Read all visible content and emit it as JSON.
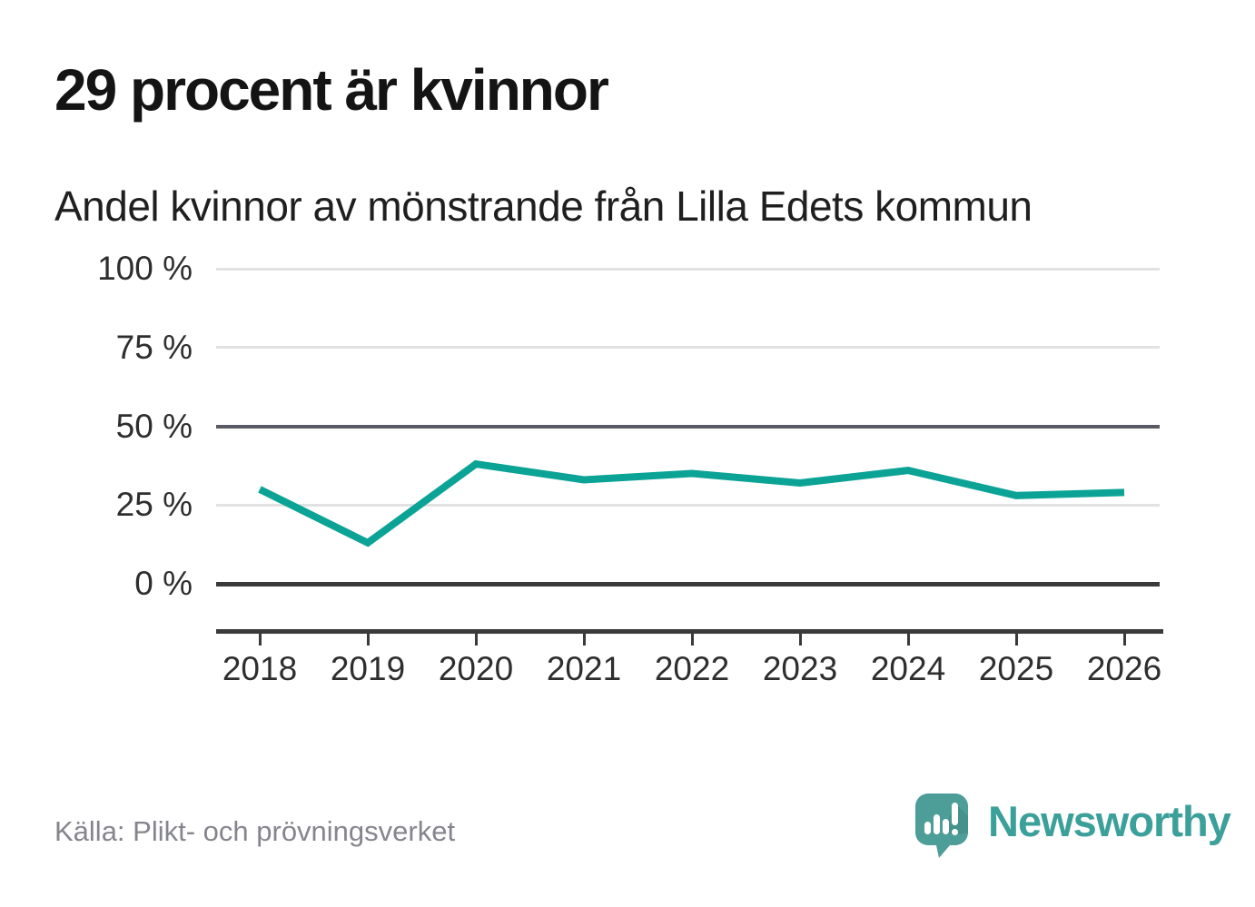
{
  "header": {
    "title": "29 procent är kvinnor",
    "subtitle": "Andel kvinnor av mönstrande från Lilla Edets kommun"
  },
  "chart_data": {
    "type": "line",
    "title": "29 procent är kvinnor",
    "subtitle": "Andel kvinnor av mönstrande från Lilla Edets kommun",
    "x": [
      2018,
      2019,
      2020,
      2021,
      2022,
      2023,
      2024,
      2025,
      2026
    ],
    "series": [
      {
        "name": "Andel kvinnor av mönstrande",
        "values": [
          30,
          13,
          38,
          33,
          35,
          32,
          36,
          28,
          29
        ]
      }
    ],
    "unit": "%",
    "ylim": [
      0,
      100
    ],
    "yticks": [
      0,
      25,
      50,
      75,
      100
    ],
    "ytick_labels": [
      "0 %",
      "25 %",
      "50 %",
      "75 %",
      "100 %"
    ],
    "xtick_labels": [
      "2018",
      "2019",
      "2020",
      "2021",
      "2022",
      "2023",
      "2024",
      "2025",
      "2026"
    ],
    "grid": "horizontal",
    "legend": "none",
    "line_color": "#0ba396"
  },
  "footer": {
    "source": "Källa: Plikt- och prövningsverket",
    "brand": "Newsworthy"
  },
  "colors": {
    "accent": "#0ba396",
    "grid_light": "#e2e2e2",
    "grid_mid": "#5a5a64",
    "grid_zero": "#3a3a3a",
    "axis": "#3a3a3a",
    "text_dark": "#141414",
    "text_muted": "#85858d",
    "logo_bubble": "#4d9d98",
    "logo_text": "#3ba09a"
  }
}
